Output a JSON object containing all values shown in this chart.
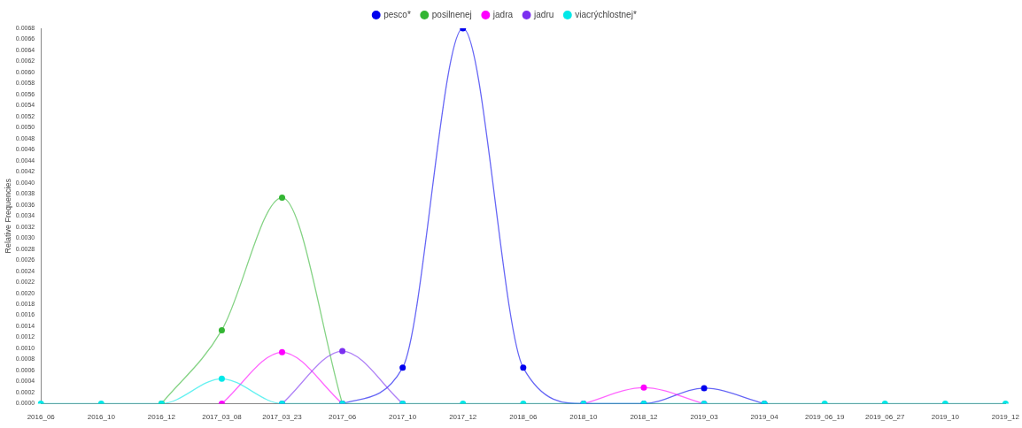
{
  "chart_data": {
    "type": "line",
    "ylabel": "Relative Frequencies",
    "categories": [
      "2016_06",
      "2016_10",
      "2016_12",
      "2017_03_08",
      "2017_03_23",
      "2017_06",
      "2017_10",
      "2017_12",
      "2018_06",
      "2018_10",
      "2018_12",
      "2019_03",
      "2019_04",
      "2019_06_19",
      "2019_06_27",
      "2019_10",
      "2019_12"
    ],
    "series": [
      {
        "name": "pesco*",
        "color": "#0000ee",
        "values": [
          null,
          null,
          null,
          null,
          null,
          0,
          0.00065,
          0.0068,
          0.00065,
          0,
          0,
          0.00028,
          0,
          null,
          null,
          null,
          null
        ]
      },
      {
        "name": "posilnenej",
        "color": "#33b533",
        "values": [
          null,
          null,
          0,
          0.00133,
          0.00373,
          0,
          null,
          null,
          null,
          null,
          null,
          null,
          null,
          null,
          null,
          null,
          null
        ]
      },
      {
        "name": "jadra",
        "color": "#ff00ff",
        "values": [
          null,
          null,
          null,
          0,
          0.00093,
          0,
          null,
          null,
          null,
          0,
          0.00029,
          0,
          null,
          null,
          null,
          null,
          null
        ]
      },
      {
        "name": "jadru",
        "color": "#7b2ff0",
        "values": [
          null,
          null,
          null,
          null,
          0,
          0.00095,
          0,
          null,
          null,
          null,
          null,
          null,
          null,
          null,
          null,
          null,
          null
        ]
      },
      {
        "name": "viacrýchlostnej*",
        "color": "#00e8e8",
        "values": [
          0,
          0,
          0,
          0.00045,
          0,
          0,
          0,
          0,
          0,
          0,
          0,
          0,
          0,
          0,
          0,
          0,
          0
        ]
      }
    ],
    "ylim": [
      0,
      0.0068
    ],
    "yticks": [
      {
        "value": 0,
        "label": "0.0000"
      },
      {
        "value": 0.0002,
        "label": "0.0002"
      },
      {
        "value": 0.0004,
        "label": "0.0004"
      },
      {
        "value": 0.0006,
        "label": "0.0006"
      },
      {
        "value": 0.0008,
        "label": "0.0008"
      },
      {
        "value": 0.001,
        "label": "0.0010"
      },
      {
        "value": 0.0012,
        "label": "0.0012"
      },
      {
        "value": 0.0014,
        "label": "0.0014"
      },
      {
        "value": 0.0016,
        "label": "0.0016"
      },
      {
        "value": 0.0018,
        "label": "0.0018"
      },
      {
        "value": 0.002,
        "label": "0.0020"
      },
      {
        "value": 0.0022,
        "label": "0.0022"
      },
      {
        "value": 0.0024,
        "label": "0.0024"
      },
      {
        "value": 0.0026,
        "label": "0.0026"
      },
      {
        "value": 0.0028,
        "label": "0.0028"
      },
      {
        "value": 0.003,
        "label": "0.0030"
      },
      {
        "value": 0.0032,
        "label": "0.0032"
      },
      {
        "value": 0.0034,
        "label": "0.0034"
      },
      {
        "value": 0.0036,
        "label": "0.0036"
      },
      {
        "value": 0.0038,
        "label": "0.0038"
      },
      {
        "value": 0.004,
        "label": "0.0040"
      },
      {
        "value": 0.0042,
        "label": "0.0042"
      },
      {
        "value": 0.0044,
        "label": "0.0044"
      },
      {
        "value": 0.0046,
        "label": "0.0046"
      },
      {
        "value": 0.0048,
        "label": "0.0048"
      },
      {
        "value": 0.005,
        "label": "0.0050"
      },
      {
        "value": 0.0052,
        "label": "0.0052"
      },
      {
        "value": 0.0054,
        "label": "0.0054"
      },
      {
        "value": 0.0056,
        "label": "0.0056"
      },
      {
        "value": 0.0058,
        "label": "0.0058"
      },
      {
        "value": 0.006,
        "label": "0.0060"
      },
      {
        "value": 0.0062,
        "label": "0.0062"
      },
      {
        "value": 0.0064,
        "label": "0.0064"
      },
      {
        "value": 0.0066,
        "label": "0.0066"
      },
      {
        "value": 0.0068,
        "label": "0.0068"
      }
    ],
    "grid": false,
    "legend": "top",
    "marker": "circle"
  }
}
